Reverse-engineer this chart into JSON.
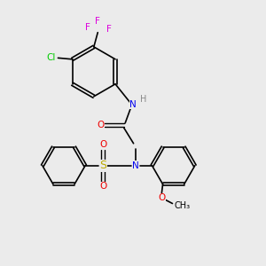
{
  "bg_color": "#ebebeb",
  "bond_color": "#000000",
  "atom_colors": {
    "N": "#0000ee",
    "O": "#ee0000",
    "S": "#bbaa00",
    "Cl": "#00cc00",
    "F": "#dd00dd",
    "H": "#888888",
    "C": "#000000"
  },
  "font_size": 7.5,
  "figsize": [
    3.0,
    3.0
  ],
  "dpi": 100
}
